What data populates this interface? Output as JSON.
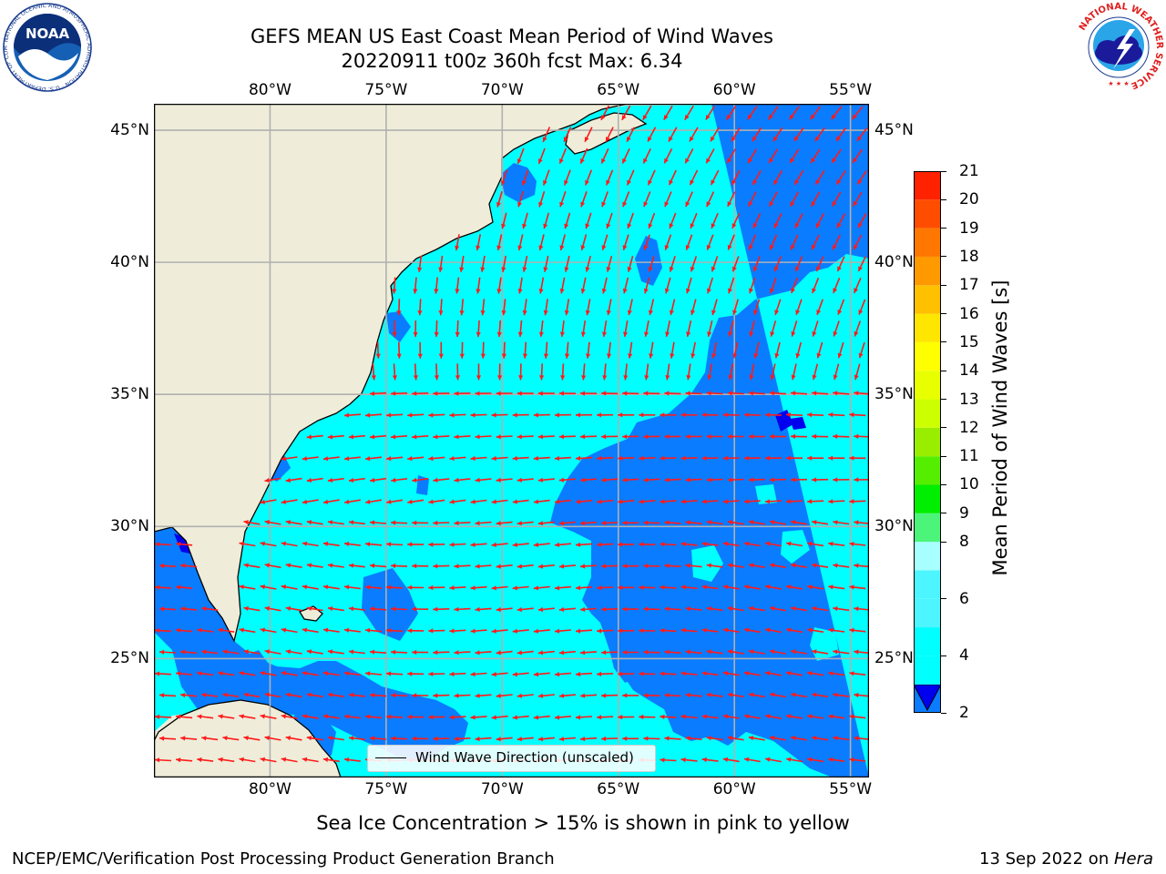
{
  "title": {
    "line1": "GEFS MEAN US East Coast Mean Period of Wind Waves",
    "line2": "20220911 t00z 360h fcst   Max: 6.34"
  },
  "map": {
    "lon_range": [
      -85,
      -54.2
    ],
    "lat_range": [
      20.5,
      46.0
    ],
    "lon_ticks": [
      {
        "value": -80,
        "label": "80°W"
      },
      {
        "value": -75,
        "label": "75°W"
      },
      {
        "value": -70,
        "label": "70°W"
      },
      {
        "value": -65,
        "label": "65°W"
      },
      {
        "value": -60,
        "label": "60°W"
      },
      {
        "value": -55,
        "label": "55°W"
      }
    ],
    "lat_ticks": [
      {
        "value": 45,
        "label": "45°N"
      },
      {
        "value": 40,
        "label": "40°N"
      },
      {
        "value": 35,
        "label": "35°N"
      },
      {
        "value": 30,
        "label": "30°N"
      },
      {
        "value": 25,
        "label": "25°N"
      }
    ],
    "grid": true,
    "colors": {
      "land": "#efedd9",
      "ocean_4_6": "#00ffff",
      "ocean_2_4": "#0a7cff",
      "ocean_lt2": "#0000ee",
      "ocean_6_8": "#4cf5ff",
      "arrow": "#ff1a1a",
      "grid": "#b0b0b0"
    },
    "legend_label": "Wind Wave Direction (unscaled)"
  },
  "colorbar": {
    "label": "Mean Period of Wind Waves [s]",
    "levels": [
      2,
      3,
      4,
      5,
      6,
      7,
      8,
      9,
      10,
      11,
      12,
      13,
      14,
      15,
      16,
      17,
      18,
      19,
      20,
      21
    ],
    "tick_labels": [
      "2",
      "4",
      "6",
      "8",
      "9",
      "10",
      "11",
      "12",
      "13",
      "14",
      "15",
      "16",
      "17",
      "18",
      "19",
      "20",
      "21"
    ],
    "colors": [
      "#0a7cff",
      "#00ffff",
      "#00ffff",
      "#4cf5ff",
      "#4cf5ff",
      "#a8ffff",
      "#4cf57a",
      "#00ee00",
      "#55ee00",
      "#99ee00",
      "#ccff00",
      "#e8ff00",
      "#ffff00",
      "#ffe600",
      "#ffc000",
      "#ff9900",
      "#ff7700",
      "#ff4d00",
      "#ff2200",
      "#ff0000"
    ],
    "under_color": "#0000ee"
  },
  "note": "Sea Ice Concentration > 15% is shown in pink to yellow",
  "footer": {
    "left": "NCEP/EMC/Verification Post Processing Product Generation Branch",
    "date": "13 Sep 2022 on ",
    "machine": "Hera"
  },
  "logos": {
    "noaa_text": "NOAA",
    "noaa_ring": "NATIONAL OCEANIC AND ATMOSPHERIC ADMINISTRATION · U.S. DEPARTMENT OF COMMERCE",
    "nws_ring": "NATIONAL WEATHER SERVICE"
  }
}
